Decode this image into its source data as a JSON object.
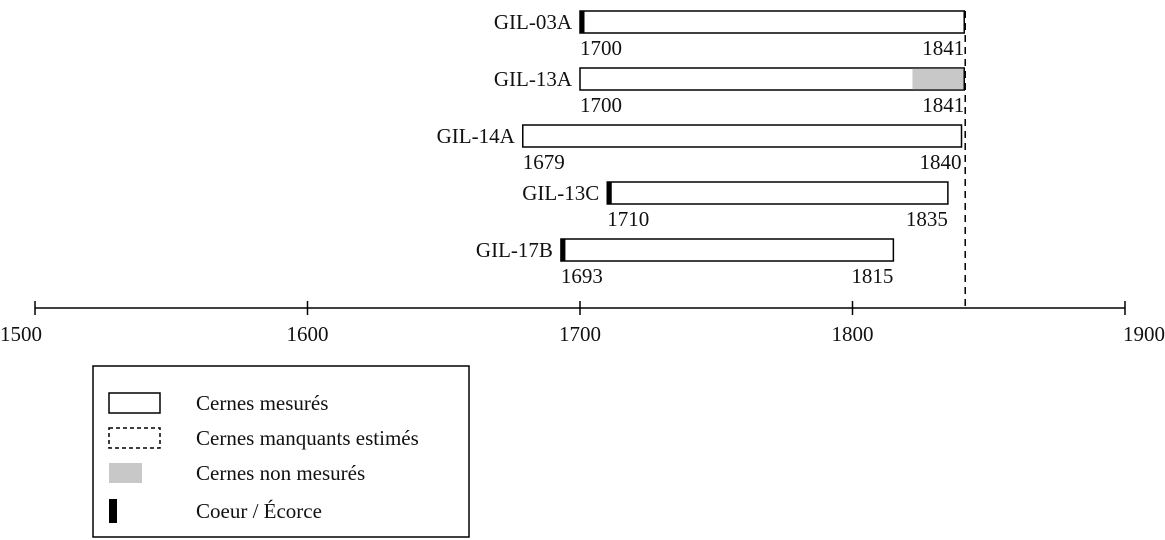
{
  "chart_data": {
    "type": "bar",
    "subtype": "dendrochronology-timeline",
    "xlim": [
      1500,
      1900
    ],
    "x_ticks": [
      1500,
      1600,
      1700,
      1800,
      1900
    ],
    "reference_year": 1841,
    "series": [
      {
        "name": "GIL-03A",
        "start": 1700,
        "end": 1841,
        "start_label": "1700",
        "end_label": "1841",
        "heart": true,
        "bark": false,
        "unmeasured_from": null
      },
      {
        "name": "GIL-13A",
        "start": 1700,
        "end": 1841,
        "start_label": "1700",
        "end_label": "1841",
        "heart": false,
        "bark": false,
        "unmeasured_from": 1822
      },
      {
        "name": "GIL-14A",
        "start": 1679,
        "end": 1840,
        "start_label": "1679",
        "end_label": "1840",
        "heart": false,
        "bark": false,
        "unmeasured_from": null
      },
      {
        "name": "GIL-13C",
        "start": 1710,
        "end": 1835,
        "start_label": "1710",
        "end_label": "1835",
        "heart": true,
        "bark": false,
        "unmeasured_from": null
      },
      {
        "name": "GIL-17B",
        "start": 1693,
        "end": 1815,
        "start_label": "1693",
        "end_label": "1815",
        "heart": true,
        "bark": false,
        "unmeasured_from": null
      }
    ],
    "legend": {
      "placement": "bottom-left",
      "items": [
        {
          "key": "measured",
          "label": "Cernes mesurés"
        },
        {
          "key": "missing",
          "label": "Cernes manquants estimés"
        },
        {
          "key": "unmeasured",
          "label": "Cernes non mesurés"
        },
        {
          "key": "pith",
          "label": "Coeur / Écorce"
        }
      ]
    },
    "colors": {
      "outline": "#000000",
      "unmeasured": "#c8c8c8",
      "pith": "#000000"
    }
  }
}
